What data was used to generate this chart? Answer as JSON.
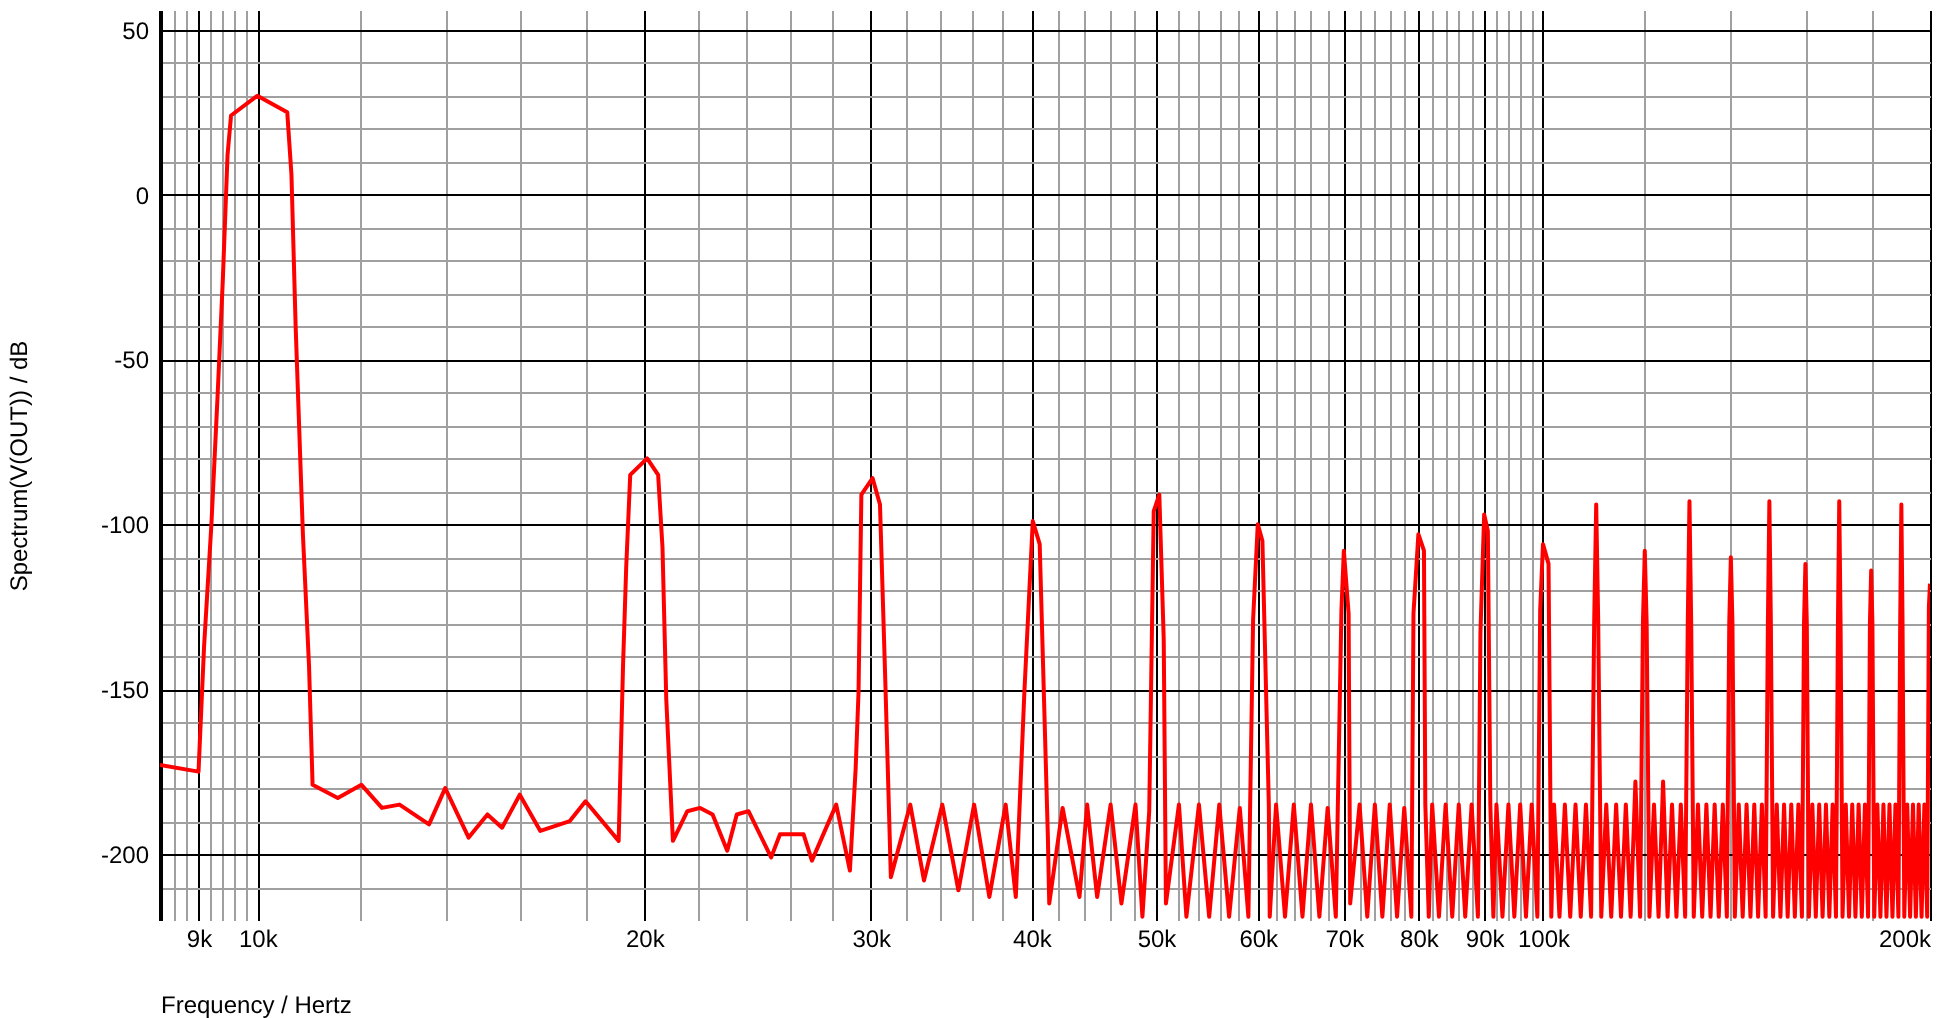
{
  "chart_data": {
    "type": "line",
    "xlabel": "Frequency / Hertz",
    "ylabel": "Spectrum(V(OUT)) / dB",
    "log": "x",
    "grid": true,
    "xlim": [
      8400,
      200000
    ],
    "ylim": [
      -220,
      56
    ],
    "xticks": [
      {
        "value": 8600,
        "label": null
      },
      {
        "value": 8800,
        "label": null
      },
      {
        "value": 9000,
        "label": "9k"
      },
      {
        "value": 9200,
        "label": null
      },
      {
        "value": 9400,
        "label": null
      },
      {
        "value": 9600,
        "label": null
      },
      {
        "value": 9800,
        "label": null
      },
      {
        "value": 10000,
        "label": "10k"
      },
      {
        "value": 12000,
        "label": null
      },
      {
        "value": 14000,
        "label": null
      },
      {
        "value": 16000,
        "label": null
      },
      {
        "value": 18000,
        "label": null
      },
      {
        "value": 20000,
        "label": "20k"
      },
      {
        "value": 22000,
        "label": null
      },
      {
        "value": 24000,
        "label": null
      },
      {
        "value": 26000,
        "label": null
      },
      {
        "value": 28000,
        "label": null
      },
      {
        "value": 30000,
        "label": "30k"
      },
      {
        "value": 32000,
        "label": null
      },
      {
        "value": 34000,
        "label": null
      },
      {
        "value": 36000,
        "label": null
      },
      {
        "value": 38000,
        "label": null
      },
      {
        "value": 40000,
        "label": "40k"
      },
      {
        "value": 42000,
        "label": null
      },
      {
        "value": 44000,
        "label": null
      },
      {
        "value": 46000,
        "label": null
      },
      {
        "value": 48000,
        "label": null
      },
      {
        "value": 50000,
        "label": "50k"
      },
      {
        "value": 52000,
        "label": null
      },
      {
        "value": 54000,
        "label": null
      },
      {
        "value": 56000,
        "label": null
      },
      {
        "value": 58000,
        "label": null
      },
      {
        "value": 60000,
        "label": "60k"
      },
      {
        "value": 62000,
        "label": null
      },
      {
        "value": 64000,
        "label": null
      },
      {
        "value": 66000,
        "label": null
      },
      {
        "value": 68000,
        "label": null
      },
      {
        "value": 70000,
        "label": "70k"
      },
      {
        "value": 72000,
        "label": null
      },
      {
        "value": 74000,
        "label": null
      },
      {
        "value": 76000,
        "label": null
      },
      {
        "value": 78000,
        "label": null
      },
      {
        "value": 80000,
        "label": "80k"
      },
      {
        "value": 82000,
        "label": null
      },
      {
        "value": 84000,
        "label": null
      },
      {
        "value": 86000,
        "label": null
      },
      {
        "value": 88000,
        "label": null
      },
      {
        "value": 90000,
        "label": "90k"
      },
      {
        "value": 92000,
        "label": null
      },
      {
        "value": 94000,
        "label": null
      },
      {
        "value": 96000,
        "label": null
      },
      {
        "value": 98000,
        "label": null
      },
      {
        "value": 100000,
        "label": "100k"
      },
      {
        "value": 120000,
        "label": null
      },
      {
        "value": 140000,
        "label": null
      },
      {
        "value": 160000,
        "label": null
      },
      {
        "value": 180000,
        "label": null
      },
      {
        "value": 200000,
        "label": "200k"
      }
    ],
    "yticks": [
      {
        "value": -210,
        "label": null
      },
      -200,
      {
        "value": -190,
        "label": null
      },
      {
        "value": -180,
        "label": null
      },
      {
        "value": -170,
        "label": null
      },
      {
        "value": -160,
        "label": null
      },
      -150,
      {
        "value": -140,
        "label": null
      },
      {
        "value": -130,
        "label": null
      },
      {
        "value": -120,
        "label": null
      },
      {
        "value": -110,
        "label": null
      },
      -100,
      {
        "value": -90,
        "label": null
      },
      {
        "value": -80,
        "label": null
      },
      {
        "value": -70,
        "label": null
      },
      {
        "value": -60,
        "label": null
      },
      -50,
      {
        "value": -40,
        "label": null
      },
      {
        "value": -30,
        "label": null
      },
      {
        "value": -20,
        "label": null
      },
      {
        "value": -10,
        "label": null
      },
      0,
      {
        "value": 10,
        "label": null
      },
      {
        "value": 20,
        "label": null
      },
      {
        "value": 30,
        "label": null
      },
      {
        "value": 40,
        "label": null
      },
      50
    ],
    "x": [
      8400,
      9000,
      9090,
      9210,
      9310,
      9400,
      9480,
      9540,
      10000,
      10550,
      10630,
      10710,
      10850,
      10970,
      11040,
      11550,
      12050,
      12500,
      12900,
      13600,
      14000,
      14600,
      15100,
      15500,
      16000,
      16600,
      17500,
      18000,
      19100,
      19250,
      19360,
      19500,
      20100,
      20500,
      20660,
      20800,
      21050,
      21600,
      22100,
      22600,
      23200,
      23600,
      24100,
      25100,
      25500,
      26600,
      27000,
      28200,
      28900,
      29200,
      29350,
      29500,
      30100,
      30500,
      30800,
      31100,
      32200,
      33000,
      34100,
      35100,
      36100,
      37100,
      38200,
      38900,
      39500,
      40100,
      40600,
      41200,
      41300,
      42300,
      43600,
      44200,
      45000,
      46100,
      47000,
      48200,
      48800,
      49400,
      49800,
      50300,
      50700,
      50900,
      52100,
      52800,
      54000,
      55000,
      56000,
      57000,
      58100,
      59000,
      59500,
      60000,
      60500,
      61200,
      61300,
      62000,
      63000,
      64000,
      65000,
      66000,
      67000,
      68000,
      69000,
      69700,
      70000,
      70600,
      70800,
      72000,
      73000,
      74000,
      75000,
      76000,
      77000,
      78000,
      79000,
      79300,
      80000,
      80800,
      81000,
      81500,
      82000,
      83000,
      84000,
      85000,
      86000,
      87000,
      88000,
      89000,
      89400,
      90000,
      90600,
      91000,
      91500,
      92000,
      93000,
      94000,
      95000,
      96000,
      97000,
      98000,
      99000,
      99500,
      100000,
      101000,
      101500,
      102000,
      103000,
      104000,
      105000,
      106000,
      107000,
      108000,
      109000,
      109600,
      110000,
      110400,
      111000,
      112000,
      113000,
      114000,
      115000,
      116000,
      117000,
      118000,
      119000,
      119600,
      120000,
      120400,
      121000,
      122000,
      123000,
      124000,
      125000,
      126000,
      127000,
      128000,
      129000,
      129600,
      130000,
      130400,
      131000,
      132000,
      133000,
      134000,
      135000,
      136000,
      137000,
      138000,
      139000,
      139600,
      140000,
      140400,
      141000,
      142000,
      143000,
      144000,
      145000,
      146000,
      147000,
      148000,
      149000,
      149600,
      150000,
      150400,
      151000,
      152000,
      153000,
      154000,
      155000,
      156000,
      157000,
      158000,
      159000,
      159600,
      160000,
      160400,
      161000,
      162000,
      163000,
      164000,
      165000,
      166000,
      167000,
      168000,
      169000,
      169600,
      170000,
      170400,
      171000,
      172000,
      173000,
      174000,
      175000,
      176000,
      177000,
      178000,
      179000,
      179600,
      180000,
      180400,
      181000,
      182000,
      183000,
      184000,
      185000,
      186000,
      187000,
      188000,
      189000,
      189600,
      190000,
      190400,
      191000,
      192000,
      193000,
      194000,
      195000,
      196000,
      197000,
      198000,
      199000,
      199600,
      200000
    ],
    "series": [
      {
        "color": "#ff0000",
        "values": [
          -173,
          -175,
          -137,
          -100,
          -62,
          -26,
          12,
          24,
          30,
          25,
          6,
          -40,
          -103,
          -143,
          -179,
          -183,
          -179,
          -186,
          -185,
          -191,
          -180,
          -195,
          -188,
          -192,
          -182,
          -193,
          -190,
          -184,
          -196,
          -143,
          -113,
          -85,
          -80,
          -85,
          -107,
          -153,
          -196,
          -187,
          -186,
          -188,
          -199,
          -188,
          -187,
          -201,
          -194,
          -194,
          -202,
          -185,
          -205,
          -174,
          -151,
          -91,
          -86,
          -94,
          -149,
          -207,
          -185,
          -208,
          -185,
          -211,
          -185,
          -213,
          -185,
          -213,
          -151,
          -99,
          -106,
          -195,
          -215,
          -186,
          -213,
          -185,
          -213,
          -185,
          -215,
          -185,
          -219,
          -187,
          -96,
          -91,
          -135,
          -215,
          -185,
          -219,
          -185,
          -219,
          -185,
          -219,
          -186,
          -219,
          -129,
          -100,
          -105,
          -185,
          -219,
          -185,
          -219,
          -185,
          -219,
          -185,
          -219,
          -186,
          -219,
          -126,
          -108,
          -127,
          -215,
          -185,
          -219,
          -185,
          -219,
          -185,
          -219,
          -186,
          -219,
          -127,
          -103,
          -108,
          -185,
          -219,
          -185,
          -219,
          -185,
          -219,
          -185,
          -219,
          -185,
          -219,
          -133,
          -97,
          -102,
          -185,
          -219,
          -185,
          -219,
          -185,
          -219,
          -185,
          -219,
          -185,
          -219,
          -126,
          -106,
          -112,
          -219,
          -185,
          -219,
          -185,
          -219,
          -185,
          -219,
          -185,
          -219,
          -130,
          -94,
          -130,
          -219,
          -185,
          -219,
          -185,
          -219,
          -185,
          -219,
          -178,
          -219,
          -130,
          -108,
          -130,
          -219,
          -185,
          -219,
          -178,
          -219,
          -185,
          -219,
          -185,
          -219,
          -130,
          -93,
          -130,
          -219,
          -185,
          -219,
          -185,
          -219,
          -185,
          -219,
          -185,
          -219,
          -130,
          -110,
          -130,
          -219,
          -185,
          -219,
          -185,
          -219,
          -185,
          -219,
          -185,
          -219,
          -130,
          -93,
          -130,
          -219,
          -185,
          -219,
          -185,
          -219,
          -185,
          -219,
          -185,
          -219,
          -130,
          -112,
          -130,
          -219,
          -185,
          -219,
          -185,
          -219,
          -185,
          -219,
          -185,
          -219,
          -130,
          -93,
          -130,
          -219,
          -185,
          -219,
          -185,
          -219,
          -185,
          -219,
          -185,
          -219,
          -130,
          -114,
          -130,
          -219,
          -185,
          -219,
          -185,
          -219,
          -185,
          -219,
          -185,
          -219,
          -130,
          -94,
          -130,
          -219,
          -185,
          -219,
          -185,
          -219,
          -185,
          -219,
          -185,
          -219,
          -125,
          -118
        ]
      }
    ]
  }
}
